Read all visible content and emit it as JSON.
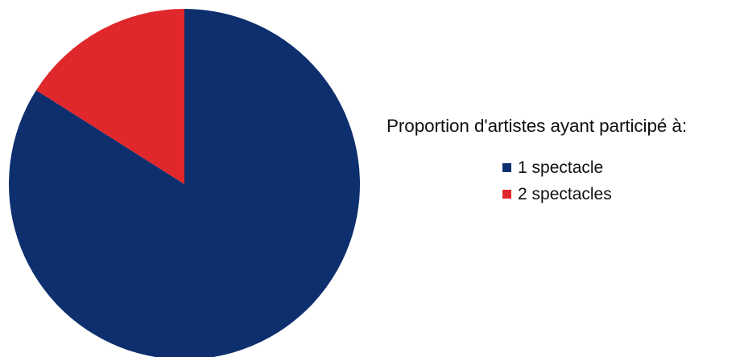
{
  "chart_data": {
    "type": "pie",
    "title": "",
    "legend_title": "Proportion d'artistes ayant participé à:",
    "legend_position": "right",
    "categories": [
      "1 spectacle",
      "2 spectacles"
    ],
    "values": [
      84,
      16
    ],
    "colors": [
      "#0d2f6e",
      "#e0272b"
    ],
    "start_angle_deg": 0,
    "direction": "clockwise"
  }
}
